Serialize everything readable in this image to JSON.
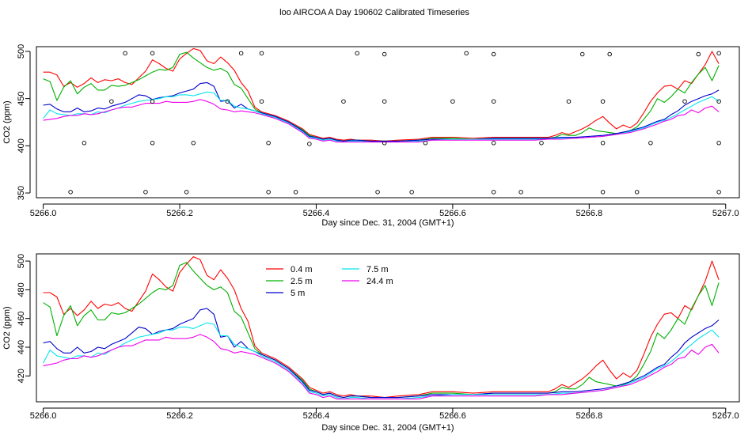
{
  "title": "loo AIRCOA A  Day 190602  Calibrated Timeseries",
  "chart_data": [
    {
      "type": "scatter",
      "xlabel": "Day since Dec. 31, 2004 (GMT+1)",
      "ylabel": "CO2 (ppm)",
      "xlim": [
        5265.99,
        5267.02
      ],
      "ylim": [
        345,
        505
      ],
      "xticks": [
        5266.0,
        5266.2,
        5266.4,
        5266.6,
        5266.8,
        5267.0
      ],
      "xtick_labels": [
        "5266.0",
        "5266.2",
        "5266.4",
        "5266.6",
        "5266.8",
        "5267.0"
      ],
      "yticks": [
        350,
        400,
        450,
        500
      ],
      "ytick_labels": [
        "350",
        "400",
        "450",
        "500"
      ],
      "grid": false,
      "series": [
        {
          "color": "#ff0000",
          "x": [
            5266.0,
            5266.01,
            5266.02,
            5266.03,
            5266.04,
            5266.05,
            5266.06,
            5266.07,
            5266.08,
            5266.09,
            5266.1,
            5266.11,
            5266.12,
            5266.13,
            5266.14,
            5266.15,
            5266.16,
            5266.17,
            5266.18,
            5266.19,
            5266.2,
            5266.21,
            5266.22,
            5266.23,
            5266.24,
            5266.25,
            5266.26,
            5266.27,
            5266.28,
            5266.29,
            5266.3,
            5266.31,
            5266.32,
            5266.34,
            5266.36,
            5266.38,
            5266.39,
            5266.4,
            5266.41,
            5266.42,
            5266.43,
            5266.44,
            5266.45,
            5266.46,
            5266.48,
            5266.5,
            5266.52,
            5266.55,
            5266.57,
            5266.6,
            5266.63,
            5266.66,
            5266.68,
            5266.7,
            5266.72,
            5266.74,
            5266.75,
            5266.76,
            5266.77,
            5266.78,
            5266.79,
            5266.8,
            5266.81,
            5266.82,
            5266.83,
            5266.84,
            5266.85,
            5266.86,
            5266.87,
            5266.88,
            5266.89,
            5266.9,
            5266.91,
            5266.92,
            5266.93,
            5266.94,
            5266.95,
            5266.96,
            5266.97,
            5266.98,
            5266.99
          ],
          "y": [
            478,
            478,
            475,
            463,
            467,
            462,
            466,
            472,
            467,
            470,
            469,
            471,
            467,
            465,
            472,
            479,
            491,
            487,
            482,
            479,
            492,
            498,
            503,
            501,
            490,
            487,
            494,
            488,
            480,
            467,
            458,
            441,
            436,
            432,
            426,
            418,
            412,
            410,
            408,
            409,
            407,
            406,
            407,
            406,
            406,
            405,
            406,
            407,
            409,
            409,
            408,
            409,
            409,
            409,
            409,
            409,
            411,
            414,
            412,
            415,
            418,
            422,
            427,
            431,
            424,
            418,
            422,
            419,
            424,
            435,
            447,
            456,
            463,
            464,
            460,
            469,
            466,
            476,
            486,
            500,
            487
          ]
        },
        {
          "color": "#00b000",
          "x": [
            5266.0,
            5266.01,
            5266.02,
            5266.03,
            5266.04,
            5266.05,
            5266.06,
            5266.07,
            5266.08,
            5266.09,
            5266.1,
            5266.11,
            5266.12,
            5266.13,
            5266.14,
            5266.15,
            5266.16,
            5266.17,
            5266.18,
            5266.19,
            5266.2,
            5266.21,
            5266.22,
            5266.23,
            5266.24,
            5266.25,
            5266.26,
            5266.27,
            5266.28,
            5266.29,
            5266.3,
            5266.31,
            5266.32,
            5266.34,
            5266.36,
            5266.38,
            5266.39,
            5266.4,
            5266.41,
            5266.42,
            5266.43,
            5266.44,
            5266.45,
            5266.46,
            5266.48,
            5266.5,
            5266.52,
            5266.55,
            5266.57,
            5266.6,
            5266.63,
            5266.66,
            5266.68,
            5266.7,
            5266.72,
            5266.74,
            5266.75,
            5266.76,
            5266.77,
            5266.78,
            5266.79,
            5266.8,
            5266.81,
            5266.82,
            5266.83,
            5266.84,
            5266.85,
            5266.86,
            5266.87,
            5266.88,
            5266.89,
            5266.9,
            5266.91,
            5266.92,
            5266.93,
            5266.94,
            5266.95,
            5266.96,
            5266.97,
            5266.98,
            5266.99
          ],
          "y": [
            471,
            468,
            448,
            462,
            469,
            455,
            462,
            466,
            459,
            459,
            464,
            463,
            464,
            467,
            470,
            474,
            478,
            481,
            480,
            483,
            497,
            499,
            493,
            488,
            483,
            480,
            482,
            478,
            465,
            461,
            450,
            439,
            435,
            431,
            425,
            417,
            411,
            409,
            407,
            408,
            406,
            405,
            406,
            406,
            405,
            405,
            405,
            406,
            408,
            408,
            407,
            408,
            408,
            408,
            408,
            408,
            409,
            412,
            411,
            411,
            414,
            419,
            416,
            415,
            414,
            413,
            414,
            416,
            420,
            428,
            437,
            450,
            446,
            452,
            460,
            456,
            467,
            476,
            483,
            469,
            485
          ]
        },
        {
          "color": "#0000cc",
          "x": [
            5266.0,
            5266.01,
            5266.02,
            5266.03,
            5266.04,
            5266.05,
            5266.06,
            5266.07,
            5266.08,
            5266.09,
            5266.1,
            5266.11,
            5266.12,
            5266.13,
            5266.14,
            5266.15,
            5266.16,
            5266.17,
            5266.18,
            5266.19,
            5266.2,
            5266.21,
            5266.22,
            5266.23,
            5266.24,
            5266.25,
            5266.26,
            5266.27,
            5266.28,
            5266.29,
            5266.3,
            5266.31,
            5266.32,
            5266.34,
            5266.36,
            5266.38,
            5266.39,
            5266.4,
            5266.41,
            5266.42,
            5266.43,
            5266.44,
            5266.45,
            5266.46,
            5266.48,
            5266.5,
            5266.52,
            5266.55,
            5266.57,
            5266.6,
            5266.63,
            5266.66,
            5266.68,
            5266.7,
            5266.72,
            5266.74,
            5266.76,
            5266.78,
            5266.8,
            5266.82,
            5266.84,
            5266.86,
            5266.88,
            5266.9,
            5266.91,
            5266.92,
            5266.93,
            5266.94,
            5266.95,
            5266.96,
            5266.97,
            5266.98,
            5266.99
          ],
          "y": [
            443,
            444,
            439,
            436,
            436,
            440,
            436,
            437,
            440,
            439,
            442,
            444,
            446,
            450,
            454,
            453,
            449,
            451,
            452,
            453,
            456,
            458,
            460,
            466,
            467,
            463,
            447,
            448,
            440,
            444,
            439,
            437,
            435,
            431,
            425,
            416,
            410,
            409,
            407,
            408,
            406,
            405,
            406,
            406,
            405,
            405,
            405,
            406,
            407,
            407,
            407,
            408,
            408,
            408,
            408,
            408,
            409,
            409,
            410,
            411,
            413,
            416,
            420,
            426,
            428,
            433,
            437,
            443,
            447,
            450,
            453,
            455,
            459
          ]
        },
        {
          "color": "#00e5ee",
          "x": [
            5266.0,
            5266.01,
            5266.02,
            5266.03,
            5266.04,
            5266.05,
            5266.06,
            5266.07,
            5266.08,
            5266.09,
            5266.1,
            5266.11,
            5266.12,
            5266.13,
            5266.14,
            5266.15,
            5266.16,
            5266.17,
            5266.18,
            5266.19,
            5266.2,
            5266.21,
            5266.22,
            5266.23,
            5266.24,
            5266.25,
            5266.26,
            5266.27,
            5266.28,
            5266.29,
            5266.3,
            5266.31,
            5266.32,
            5266.34,
            5266.36,
            5266.38,
            5266.39,
            5266.4,
            5266.41,
            5266.42,
            5266.43,
            5266.44,
            5266.45,
            5266.46,
            5266.48,
            5266.5,
            5266.52,
            5266.55,
            5266.57,
            5266.6,
            5266.63,
            5266.66,
            5266.68,
            5266.7,
            5266.72,
            5266.74,
            5266.76,
            5266.78,
            5266.8,
            5266.82,
            5266.84,
            5266.86,
            5266.88,
            5266.9,
            5266.91,
            5266.92,
            5266.93,
            5266.94,
            5266.95,
            5266.96,
            5266.97,
            5266.98,
            5266.99
          ],
          "y": [
            429,
            438,
            434,
            433,
            432,
            434,
            434,
            433,
            436,
            435,
            438,
            440,
            443,
            445,
            447,
            448,
            449,
            450,
            452,
            452,
            454,
            454,
            453,
            455,
            457,
            456,
            448,
            448,
            442,
            440,
            439,
            437,
            434,
            430,
            424,
            415,
            409,
            408,
            406,
            407,
            405,
            404,
            405,
            405,
            404,
            404,
            404,
            405,
            406,
            407,
            407,
            407,
            407,
            407,
            407,
            407,
            408,
            408,
            409,
            410,
            412,
            415,
            419,
            425,
            427,
            430,
            434,
            438,
            442,
            446,
            449,
            452,
            447
          ]
        },
        {
          "color": "#ee00ee",
          "x": [
            5266.0,
            5266.01,
            5266.02,
            5266.03,
            5266.04,
            5266.05,
            5266.06,
            5266.07,
            5266.08,
            5266.09,
            5266.1,
            5266.11,
            5266.12,
            5266.13,
            5266.14,
            5266.15,
            5266.16,
            5266.17,
            5266.18,
            5266.19,
            5266.2,
            5266.21,
            5266.22,
            5266.23,
            5266.24,
            5266.25,
            5266.26,
            5266.27,
            5266.28,
            5266.29,
            5266.3,
            5266.31,
            5266.32,
            5266.34,
            5266.36,
            5266.38,
            5266.39,
            5266.4,
            5266.41,
            5266.42,
            5266.43,
            5266.44,
            5266.45,
            5266.46,
            5266.48,
            5266.5,
            5266.52,
            5266.55,
            5266.57,
            5266.6,
            5266.63,
            5266.66,
            5266.68,
            5266.7,
            5266.72,
            5266.74,
            5266.76,
            5266.78,
            5266.8,
            5266.82,
            5266.84,
            5266.86,
            5266.88,
            5266.9,
            5266.91,
            5266.92,
            5266.93,
            5266.94,
            5266.95,
            5266.96,
            5266.97,
            5266.98,
            5266.99
          ],
          "y": [
            427,
            428,
            429,
            431,
            432,
            432,
            434,
            433,
            434,
            436,
            438,
            440,
            441,
            441,
            443,
            445,
            445,
            445,
            447,
            446,
            446,
            446,
            447,
            449,
            447,
            444,
            439,
            438,
            436,
            437,
            436,
            435,
            433,
            429,
            423,
            414,
            408,
            407,
            405,
            406,
            404,
            404,
            404,
            404,
            404,
            404,
            404,
            404,
            406,
            406,
            406,
            406,
            406,
            406,
            406,
            407,
            407,
            408,
            409,
            410,
            412,
            414,
            418,
            423,
            426,
            428,
            432,
            433,
            438,
            435,
            440,
            442,
            436
          ]
        }
      ],
      "markers": {
        "style": "open-circle",
        "x": [
          5266.04,
          5266.06,
          5266.1,
          5266.12,
          5266.15,
          5266.16,
          5266.16,
          5266.16,
          5266.21,
          5266.22,
          5266.27,
          5266.29,
          5266.32,
          5266.32,
          5266.33,
          5266.33,
          5266.37,
          5266.39,
          5266.44,
          5266.46,
          5266.49,
          5266.5,
          5266.5,
          5266.5,
          5266.54,
          5266.56,
          5266.6,
          5266.62,
          5266.66,
          5266.66,
          5266.66,
          5266.66,
          5266.7,
          5266.73,
          5266.77,
          5266.79,
          5266.82,
          5266.82,
          5266.82,
          5266.83,
          5266.87,
          5266.89,
          5266.94,
          5266.96,
          5266.99,
          5266.99,
          5266.99,
          5266.99
        ],
        "y": [
          351,
          403,
          447,
          498,
          351,
          403,
          447,
          498,
          351,
          403,
          447,
          498,
          498,
          447,
          403,
          351,
          351,
          402,
          447,
          498,
          351,
          403,
          447,
          497,
          351,
          403,
          447,
          498,
          497,
          447,
          403,
          351,
          351,
          403,
          447,
          497,
          351,
          403,
          447,
          497,
          351,
          403,
          447,
          497,
          498,
          447,
          403,
          351
        ]
      }
    },
    {
      "type": "line",
      "xlabel": "Day since Dec. 31, 2004 (GMT+1)",
      "ylabel": "CO2 (ppm)",
      "xlim": [
        5265.99,
        5267.02
      ],
      "ylim": [
        402,
        505
      ],
      "xticks": [
        5266.0,
        5266.2,
        5266.4,
        5266.6,
        5266.8,
        5267.0
      ],
      "xtick_labels": [
        "5266.0",
        "5266.2",
        "5266.4",
        "5266.6",
        "5266.8",
        "5267.0"
      ],
      "yticks": [
        420,
        440,
        460,
        480,
        500
      ],
      "ytick_labels": [
        "420",
        "440",
        "460",
        "480",
        "500"
      ],
      "grid": false,
      "legend": {
        "placement": "top-center",
        "entries": [
          {
            "name": "0.4 m",
            "color": "#ff0000"
          },
          {
            "name": "2.5 m",
            "color": "#00b000"
          },
          {
            "name": "5 m",
            "color": "#0000cc"
          },
          {
            "name": "7.5 m",
            "color": "#00e5ee"
          },
          {
            "name": "24.4 m",
            "color": "#ee00ee"
          }
        ]
      }
    }
  ]
}
